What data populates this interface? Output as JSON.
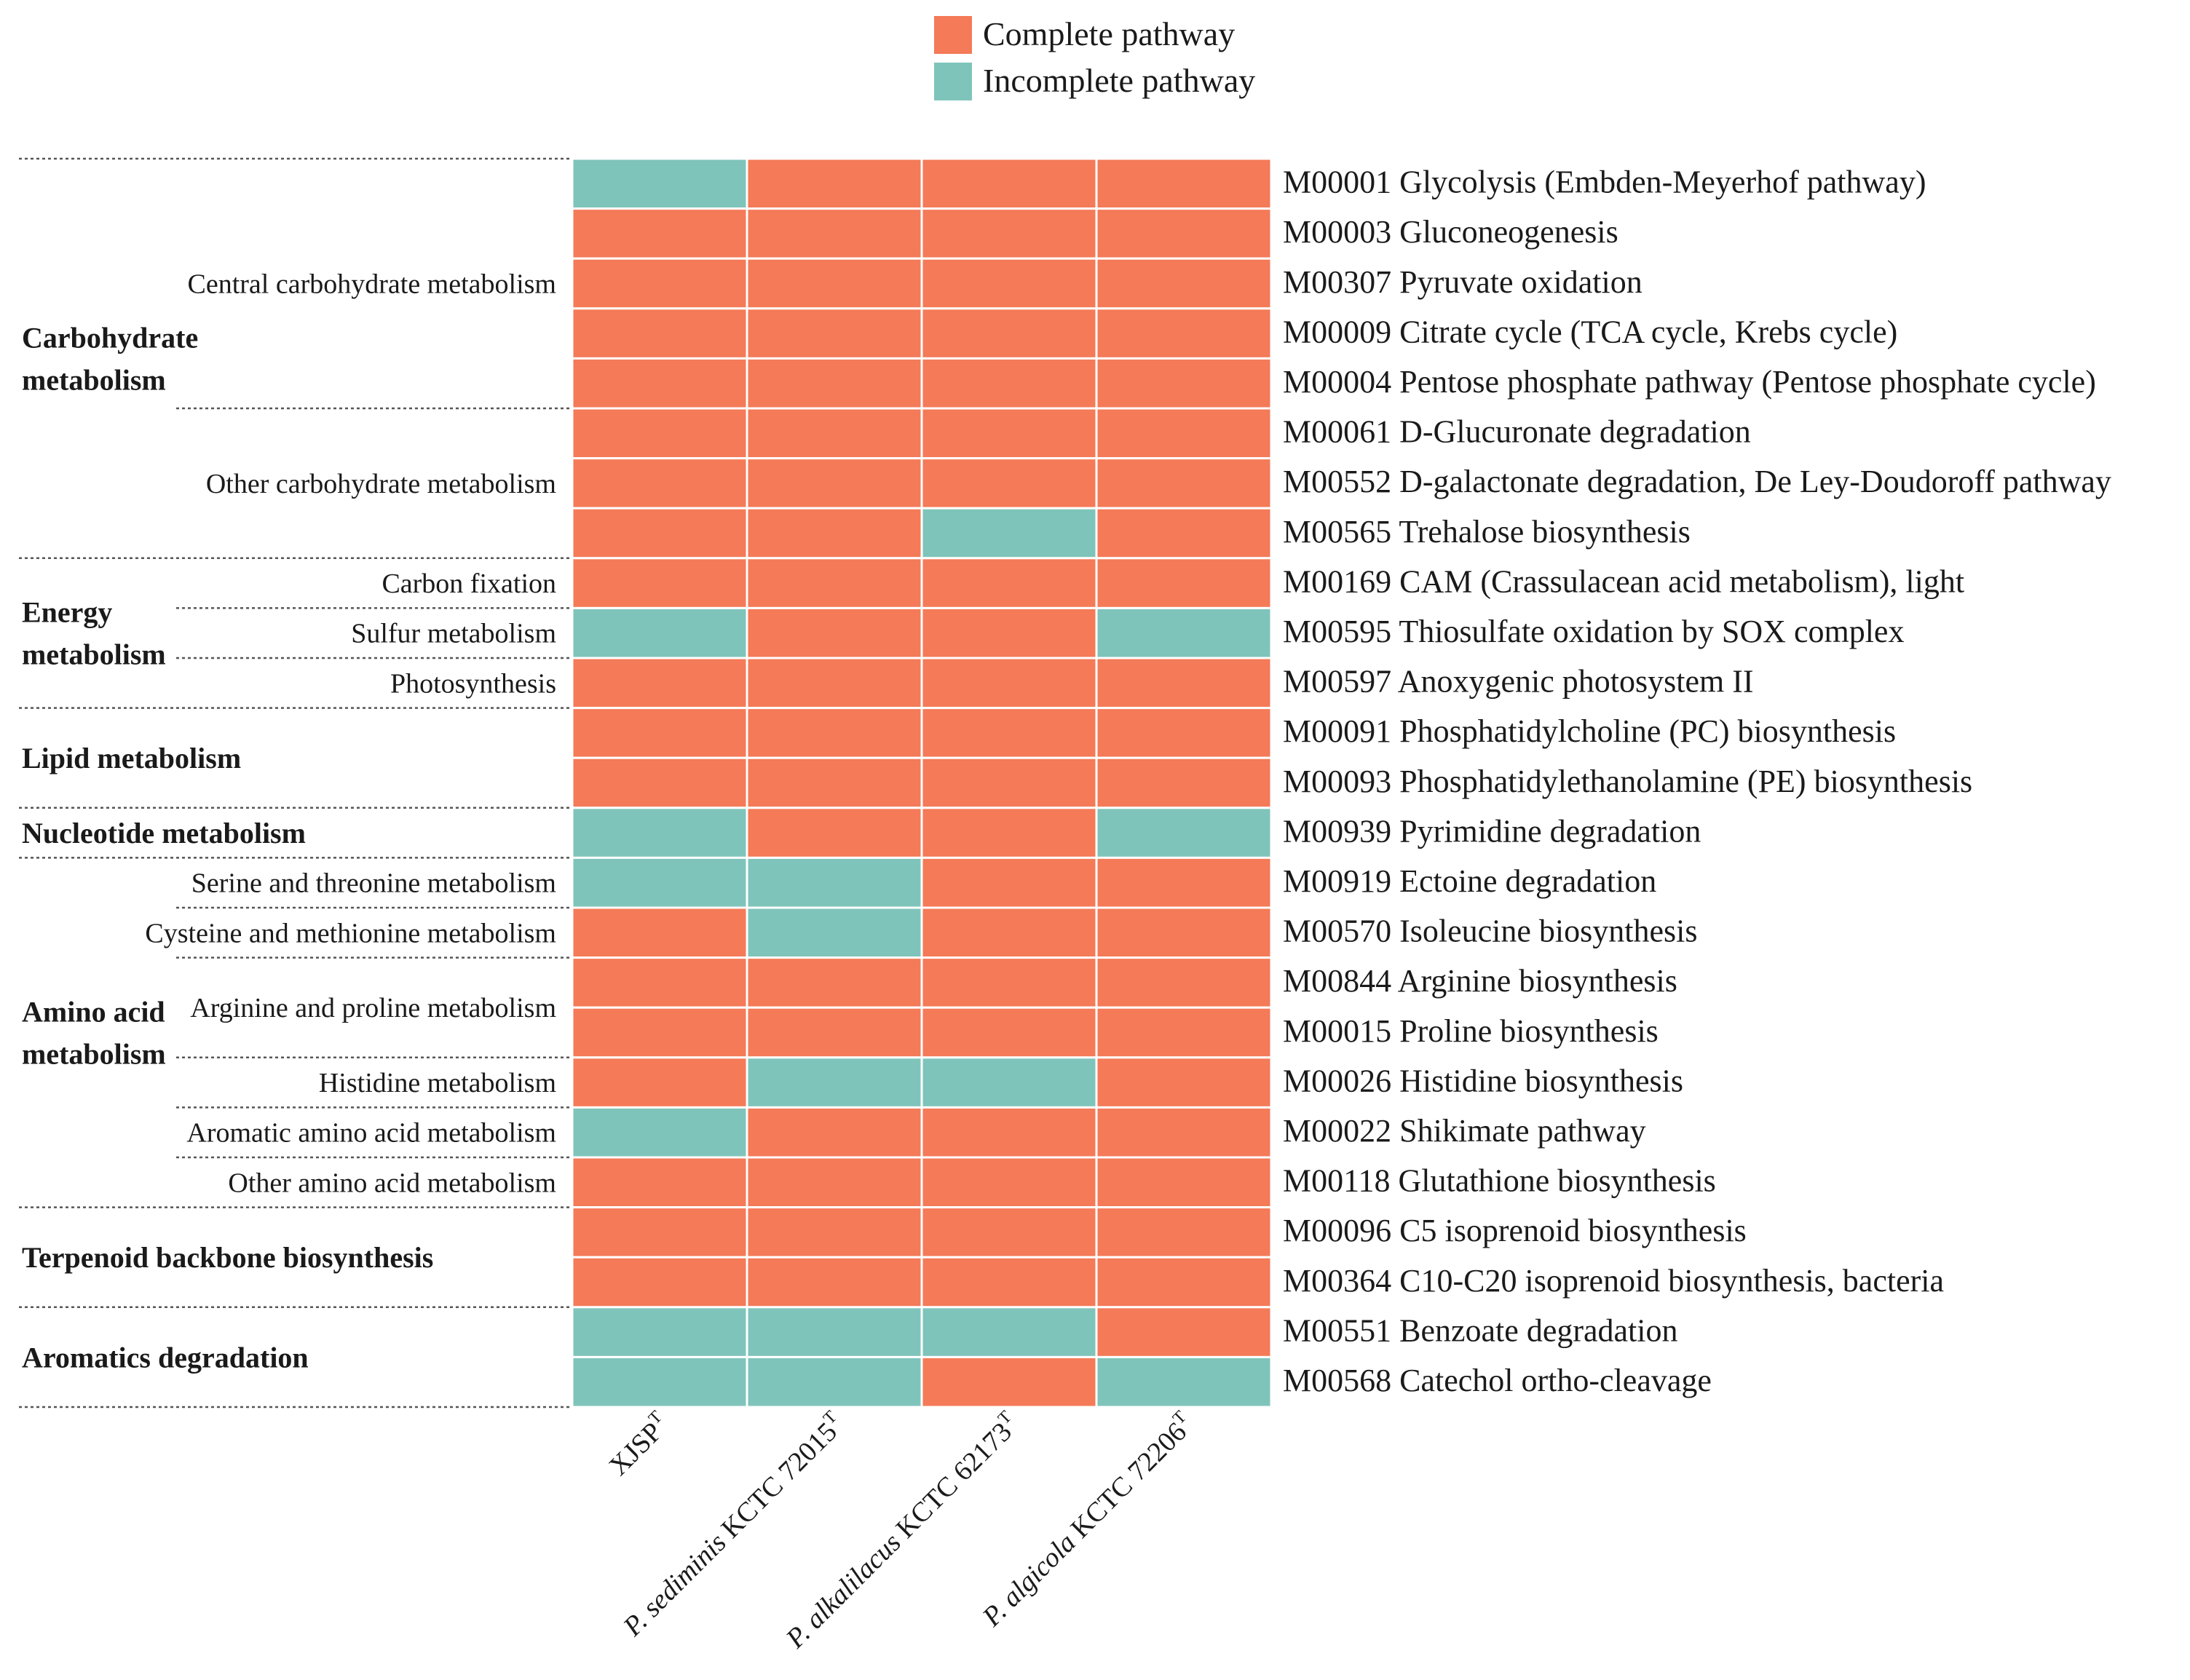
{
  "chart_data": {
    "type": "heatmap",
    "legend": [
      {
        "key": "complete",
        "label": "Complete pathway",
        "color": "#F47A58"
      },
      {
        "key": "incomplete",
        "label": "Incomplete pathway",
        "color": "#7FC4BB"
      }
    ],
    "columns": [
      {
        "name": "XJSP",
        "sup": "T",
        "italic": false
      },
      {
        "name": "P. sediminis KCTC 72015",
        "sup": "T",
        "italic": true
      },
      {
        "name": "P. alkalilacus KCTC 62173",
        "sup": "T",
        "italic": true
      },
      {
        "name": "P. algicola KCTC 72206",
        "sup": "T",
        "italic": true
      }
    ],
    "rows": [
      {
        "module": "M00001 Glycolysis (Embden-Meyerhof pathway)",
        "values": [
          0,
          1,
          1,
          1
        ]
      },
      {
        "module": "M00003 Gluconeogenesis",
        "values": [
          1,
          1,
          1,
          1
        ]
      },
      {
        "module": "M00307 Pyruvate oxidation",
        "values": [
          1,
          1,
          1,
          1
        ]
      },
      {
        "module": "M00009 Citrate cycle (TCA cycle, Krebs cycle)",
        "values": [
          1,
          1,
          1,
          1
        ]
      },
      {
        "module": "M00004 Pentose phosphate pathway (Pentose phosphate cycle)",
        "values": [
          1,
          1,
          1,
          1
        ]
      },
      {
        "module": "M00061 D-Glucuronate degradation",
        "values": [
          1,
          1,
          1,
          1
        ]
      },
      {
        "module": "M00552 D-galactonate degradation, De Ley-Doudoroff pathway",
        "values": [
          1,
          1,
          1,
          1
        ]
      },
      {
        "module": "M00565 Trehalose biosynthesis",
        "values": [
          1,
          1,
          0,
          1
        ]
      },
      {
        "module": "M00169 CAM (Crassulacean acid metabolism), light",
        "values": [
          1,
          1,
          1,
          1
        ]
      },
      {
        "module": "M00595 Thiosulfate oxidation by SOX complex",
        "values": [
          0,
          1,
          1,
          0
        ]
      },
      {
        "module": "M00597 Anoxygenic photosystem II",
        "values": [
          1,
          1,
          1,
          1
        ]
      },
      {
        "module": "M00091 Phosphatidylcholine (PC) biosynthesis",
        "values": [
          1,
          1,
          1,
          1
        ]
      },
      {
        "module": "M00093 Phosphatidylethanolamine (PE) biosynthesis",
        "values": [
          1,
          1,
          1,
          1
        ]
      },
      {
        "module": "M00939 Pyrimidine degradation",
        "values": [
          0,
          1,
          1,
          0
        ]
      },
      {
        "module": "M00919 Ectoine degradation",
        "values": [
          0,
          0,
          1,
          1
        ]
      },
      {
        "module": "M00570 Isoleucine biosynthesis",
        "values": [
          1,
          0,
          1,
          1
        ]
      },
      {
        "module": "M00844 Arginine biosynthesis",
        "values": [
          1,
          1,
          1,
          1
        ]
      },
      {
        "module": "M00015 Proline biosynthesis",
        "values": [
          1,
          1,
          1,
          1
        ]
      },
      {
        "module": "M00026 Histidine biosynthesis",
        "values": [
          1,
          0,
          0,
          1
        ]
      },
      {
        "module": "M00022 Shikimate pathway",
        "values": [
          0,
          1,
          1,
          1
        ]
      },
      {
        "module": "M00118 Glutathione biosynthesis",
        "values": [
          1,
          1,
          1,
          1
        ]
      },
      {
        "module": "M00096 C5 isoprenoid biosynthesis",
        "values": [
          1,
          1,
          1,
          1
        ]
      },
      {
        "module": "M00364 C10-C20 isoprenoid biosynthesis, bacteria",
        "values": [
          1,
          1,
          1,
          1
        ]
      },
      {
        "module": "M00551 Benzoate degradation",
        "values": [
          0,
          0,
          0,
          1
        ]
      },
      {
        "module": "M00568 Catechol ortho-cleavage",
        "values": [
          0,
          0,
          1,
          0
        ]
      }
    ],
    "categories": [
      {
        "name": "Carbohydrate metabolism",
        "lines": [
          "Carbohydrate",
          "metabolism"
        ],
        "start": 0,
        "end": 7
      },
      {
        "name": "Energy metabolism",
        "lines": [
          "Energy",
          "metabolism"
        ],
        "start": 8,
        "end": 10
      },
      {
        "name": "Lipid metabolism",
        "lines": [
          "Lipid  metabolism"
        ],
        "start": 11,
        "end": 12
      },
      {
        "name": "Nucleotide metabolism",
        "lines": [
          "Nucleotide metabolism"
        ],
        "start": 13,
        "end": 13
      },
      {
        "name": "Amino acid metabolism",
        "lines": [
          "Amino acid",
          "metabolism"
        ],
        "start": 14,
        "end": 20
      },
      {
        "name": "Terpenoid backbone biosynthesis",
        "lines": [
          "Terpenoid backbone biosynthesis"
        ],
        "start": 21,
        "end": 22
      },
      {
        "name": "Aromatics degradation",
        "lines": [
          "Aromatics degradation"
        ],
        "start": 23,
        "end": 24
      }
    ],
    "subcategories": [
      {
        "label": "Central carbohydrate metabolism",
        "start": 0,
        "end": 4
      },
      {
        "label": "Other carbohydrate metabolism",
        "start": 5,
        "end": 7
      },
      {
        "label": "Carbon fixation",
        "start": 8,
        "end": 8
      },
      {
        "label": "Sulfur metabolism",
        "start": 9,
        "end": 9
      },
      {
        "label": "Photosynthesis",
        "start": 10,
        "end": 10
      },
      {
        "label": "Serine and threonine metabolism",
        "start": 14,
        "end": 14
      },
      {
        "label": "Cysteine and methionine metabolism",
        "start": 15,
        "end": 15
      },
      {
        "label": "Arginine and proline metabolism",
        "start": 16,
        "end": 17
      },
      {
        "label": "Histidine metabolism",
        "start": 18,
        "end": 18
      },
      {
        "label": "Aromatic amino acid metabolism",
        "start": 19,
        "end": 19
      },
      {
        "label": "Other amino acid metabolism",
        "start": 20,
        "end": 20
      }
    ]
  }
}
